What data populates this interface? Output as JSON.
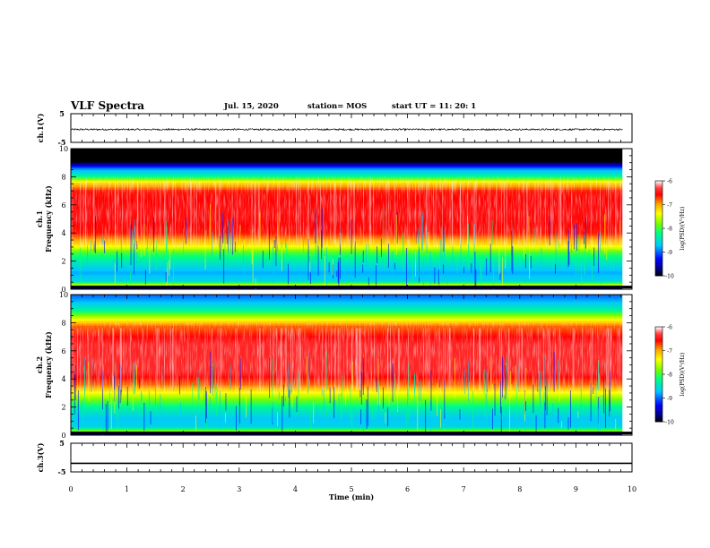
{
  "header": {
    "title": "VLF Spectra",
    "date": "Jul. 15, 2020",
    "station": "station= MOS",
    "start": "start UT = 11: 20: 1"
  },
  "colors": {
    "background": "#ffffff",
    "axes": "#000000",
    "colormap": [
      "#000000",
      "#00008b",
      "#0000ff",
      "#00c8ff",
      "#00ff80",
      "#7cfc00",
      "#ffff00",
      "#ffa500",
      "#ff0000",
      "#ff4040",
      "#ffffff"
    ]
  },
  "chart_data": [
    {
      "type": "line",
      "panel": "ch1-waveform",
      "ylabel": "ch.1(V)",
      "ylim": [
        -5,
        5
      ],
      "yticks": [
        "5",
        "-5"
      ],
      "xlim": [
        0,
        10
      ],
      "series": [
        {
          "values_summary": "noise around -0.5 V, amplitude ~0.3 V",
          "x": [
            0,
            9.83
          ],
          "y": [
            -0.5,
            -0.5
          ]
        }
      ]
    },
    {
      "type": "heatmap",
      "panel": "ch1-spectrogram",
      "ylabel": "ch.1 Frequency (kHz)",
      "ylim": [
        0,
        10
      ],
      "yticks": [
        "0",
        "2",
        "4",
        "6",
        "8",
        "10"
      ],
      "xlim": [
        0,
        10
      ],
      "data_xmax": 9.83,
      "frequency_profile_kHz": [
        [
          0.0,
          -10
        ],
        [
          0.35,
          -7.6
        ],
        [
          0.6,
          -8.6
        ],
        [
          1.2,
          -8.8
        ],
        [
          2.0,
          -8.4
        ],
        [
          2.6,
          -8.0
        ],
        [
          3.2,
          -7.2
        ],
        [
          4.0,
          -6.6
        ],
        [
          5.5,
          -6.5
        ],
        [
          7.0,
          -6.6
        ],
        [
          7.6,
          -7.2
        ],
        [
          8.0,
          -8.2
        ],
        [
          8.6,
          -8.9
        ],
        [
          8.9,
          -9.6
        ],
        [
          9.1,
          -10
        ],
        [
          10.0,
          -10
        ]
      ],
      "colorbar": {
        "label": "log(PSD)(V²/Hz)",
        "ticks": [
          "-6",
          "-7",
          "-8",
          "-9",
          "-10"
        ],
        "range": [
          -10,
          -6
        ]
      }
    },
    {
      "type": "heatmap",
      "panel": "ch2-spectrogram",
      "ylabel": "ch.2 Frequency (kHz)",
      "ylim": [
        0,
        10
      ],
      "yticks": [
        "0",
        "2",
        "4",
        "6",
        "8",
        "10"
      ],
      "xlim": [
        0,
        10
      ],
      "data_xmax": 9.83,
      "frequency_profile_kHz": [
        [
          0.0,
          -10
        ],
        [
          0.3,
          -7.7
        ],
        [
          0.6,
          -8.6
        ],
        [
          1.2,
          -8.7
        ],
        [
          2.0,
          -8.3
        ],
        [
          2.8,
          -7.6
        ],
        [
          3.6,
          -6.8
        ],
        [
          4.5,
          -6.4
        ],
        [
          6.5,
          -6.4
        ],
        [
          7.8,
          -6.8
        ],
        [
          8.4,
          -7.6
        ],
        [
          9.0,
          -8.4
        ],
        [
          9.6,
          -8.8
        ],
        [
          10.0,
          -9.0
        ]
      ],
      "colorbar": {
        "label": "log(PSD)(V²/Hz)",
        "ticks": [
          "-6",
          "-7",
          "-8",
          "-9",
          "-10"
        ],
        "range": [
          -10,
          -6
        ]
      }
    },
    {
      "type": "line",
      "panel": "ch3-waveform",
      "ylabel": "ch.3(V)",
      "ylim": [
        -5,
        5
      ],
      "yticks": [
        "5",
        "-5"
      ],
      "xlim": [
        0,
        10
      ],
      "series": [
        {
          "values_summary": "flat at about -2 V",
          "x": [
            0,
            10
          ],
          "y": [
            -2,
            -2
          ]
        }
      ]
    }
  ],
  "xaxis": {
    "label": "Time (min)",
    "ticks": [
      "0",
      "1",
      "2",
      "3",
      "4",
      "5",
      "6",
      "7",
      "8",
      "9",
      "10"
    ]
  }
}
